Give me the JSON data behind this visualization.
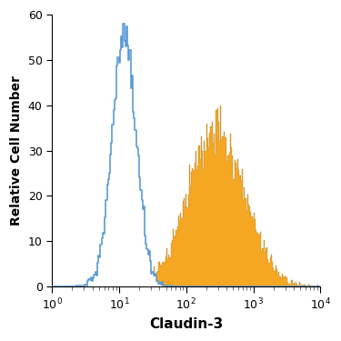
{
  "title": "",
  "xlabel": "Claudin-3",
  "ylabel": "Relative Cell Number",
  "xlim": [
    1,
    10000
  ],
  "ylim": [
    0,
    60
  ],
  "yticks": [
    0,
    10,
    20,
    30,
    40,
    50,
    60
  ],
  "isotype_color": "#5b9bd5",
  "antibody_color": "#f5a623",
  "isotype_peak": 12,
  "isotype_peak_val": 58,
  "isotype_spread": 0.18,
  "antibody_peak": 280,
  "antibody_peak_val": 40,
  "antibody_spread": 0.42,
  "figsize": [
    3.75,
    3.75
  ],
  "dpi": 100
}
